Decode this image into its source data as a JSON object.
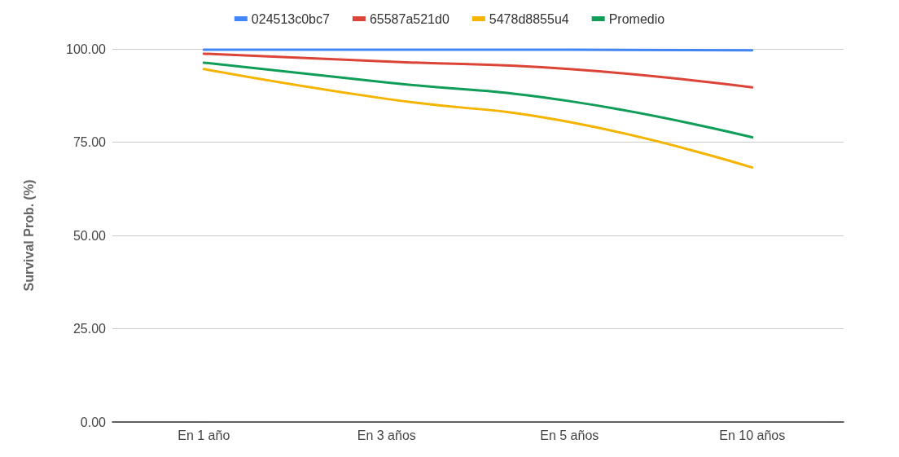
{
  "chart_data": {
    "type": "line",
    "ylabel": "Survival Prob. (%)",
    "categories": [
      "En 1 año",
      "En 3 años",
      "En 5 años",
      "En 10 años"
    ],
    "series": [
      {
        "name": "024513c0bc7",
        "color": "#4285f4",
        "values": [
          99.8,
          99.8,
          99.8,
          99.6
        ]
      },
      {
        "name": "65587a521d0",
        "color": "#db4437",
        "values": [
          98.7,
          96.6,
          94.6,
          89.7
        ]
      },
      {
        "name": "5478d8855u4",
        "color": "#f4b400",
        "values": [
          94.6,
          86.6,
          80.4,
          68.2
        ]
      },
      {
        "name": "Promedio",
        "color": "#0f9d58",
        "values": [
          96.3,
          91,
          86,
          76.3
        ]
      }
    ],
    "ylim": [
      0,
      100
    ],
    "yticks": [
      {
        "value": 0,
        "label": "0.00"
      },
      {
        "value": 25,
        "label": "25.00"
      },
      {
        "value": 50,
        "label": "50.00"
      },
      {
        "value": 75,
        "label": "75.00"
      },
      {
        "value": 100,
        "label": "100.00"
      }
    ],
    "grid": "y",
    "legend": "top",
    "marker": "none",
    "line_style": "solid"
  }
}
